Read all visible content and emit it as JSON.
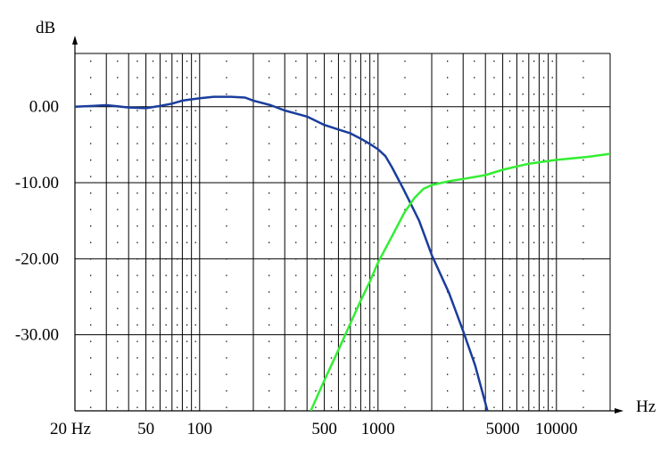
{
  "chart_data": {
    "type": "line",
    "xscale": "log",
    "xlim": [
      20,
      20000
    ],
    "ylim": [
      -40,
      7
    ],
    "grid": true,
    "legend": "none",
    "y_unit": "dB",
    "x_unit": "Hz",
    "x_tick_labels": [
      {
        "value": 20,
        "label": "20 Hz"
      },
      {
        "value": 50,
        "label": "50"
      },
      {
        "value": 100,
        "label": "100"
      },
      {
        "value": 500,
        "label": "500"
      },
      {
        "value": 1000,
        "label": "1000"
      },
      {
        "value": 5000,
        "label": "5000"
      },
      {
        "value": 10000,
        "label": "10000"
      }
    ],
    "y_tick_labels": [
      {
        "value": 0,
        "label": "0.00"
      },
      {
        "value": -10,
        "label": "-10.00"
      },
      {
        "value": -20,
        "label": "-20.00"
      },
      {
        "value": -30,
        "label": "-30.00"
      }
    ],
    "series": [
      {
        "color": "#1a3d9c",
        "points": [
          [
            20,
            0
          ],
          [
            25,
            0.1
          ],
          [
            30,
            0.2
          ],
          [
            40,
            -0.1
          ],
          [
            50,
            -0.2
          ],
          [
            60,
            0.1
          ],
          [
            70,
            0.4
          ],
          [
            80,
            0.8
          ],
          [
            100,
            1.1
          ],
          [
            120,
            1.3
          ],
          [
            150,
            1.3
          ],
          [
            180,
            1.2
          ],
          [
            200,
            0.8
          ],
          [
            250,
            0.2
          ],
          [
            300,
            -0.5
          ],
          [
            400,
            -1.3
          ],
          [
            500,
            -2.4
          ],
          [
            600,
            -3.0
          ],
          [
            700,
            -3.5
          ],
          [
            800,
            -4.2
          ],
          [
            900,
            -4.9
          ],
          [
            1000,
            -5.6
          ],
          [
            1100,
            -6.5
          ],
          [
            1200,
            -8.0
          ],
          [
            1400,
            -11.0
          ],
          [
            1700,
            -15.0
          ],
          [
            2000,
            -19.5
          ],
          [
            2500,
            -24.5
          ],
          [
            3000,
            -29.5
          ],
          [
            3500,
            -34.0
          ],
          [
            4000,
            -39.0
          ],
          [
            4100,
            -40.0
          ]
        ]
      },
      {
        "color": "#33ee33",
        "points": [
          [
            420,
            -40
          ],
          [
            500,
            -36
          ],
          [
            600,
            -32
          ],
          [
            700,
            -28.5
          ],
          [
            800,
            -25.5
          ],
          [
            900,
            -23.0
          ],
          [
            1000,
            -20.5
          ],
          [
            1200,
            -17.0
          ],
          [
            1400,
            -14.0
          ],
          [
            1600,
            -12.0
          ],
          [
            1800,
            -10.8
          ],
          [
            2000,
            -10.3
          ],
          [
            2500,
            -9.8
          ],
          [
            3000,
            -9.5
          ],
          [
            4000,
            -9.0
          ],
          [
            5000,
            -8.3
          ],
          [
            7000,
            -7.5
          ],
          [
            10000,
            -7.0
          ],
          [
            15000,
            -6.6
          ],
          [
            20000,
            -6.2
          ]
        ]
      }
    ]
  }
}
